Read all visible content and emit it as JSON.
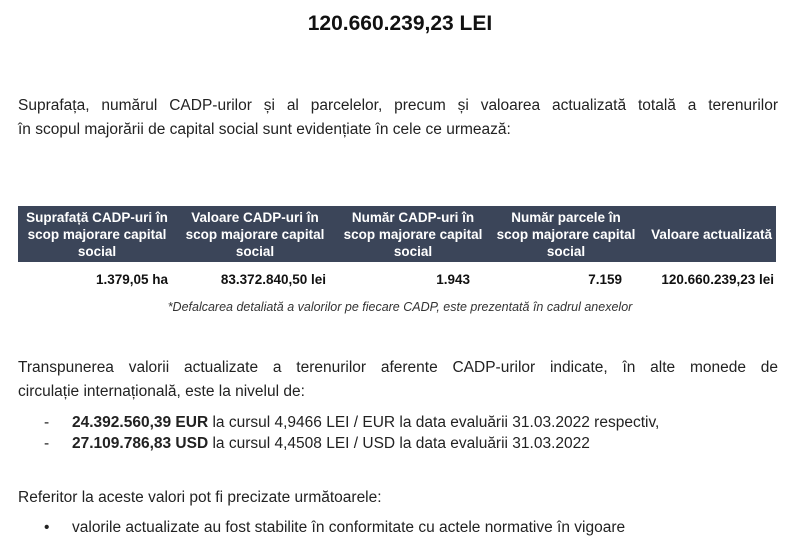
{
  "title": "120.660.239,23 LEI",
  "intro": {
    "line1": "Suprafața, numărul CADP-urilor și al parcelelor, precum și valoarea actualizată totală a terenurilor",
    "line2": "în scopul majorării de capital social sunt evidențiate în cele ce urmează:"
  },
  "table": {
    "header_color": "#3b4559",
    "headers": [
      "Suprafață CADP-uri în scop majorare capital social",
      "Valoare CADP-uri în scop majorare capital social",
      "Număr CADP-uri în scop majorare capital social",
      "Număr parcele în scop majorare capital social",
      "Valoare actualizată"
    ],
    "row": [
      "1.379,05 ha",
      "83.372.840,50 lei",
      "1.943",
      "7.159",
      "120.660.239,23 lei"
    ],
    "footnote": "*Defalcarea detaliată a valorilor pe fiecare CADP, este prezentată în cadrul anexelor"
  },
  "transpunere": {
    "line1": "Transpunerea valorii actualizate a terenurilor aferente CADP-urilor indicate, în alte monede de",
    "line2": "circulație internațională, este la nivelul de:",
    "items": [
      {
        "bullet": "-",
        "amount": "24.392.560,39 EUR",
        "text": " la cursul 4,9466 LEI / EUR la data evaluării 31.03.2022 respectiv,"
      },
      {
        "bullet": "-",
        "amount": "27.109.786,83 USD",
        "text": " la cursul 4,4508 LEI / USD la data evaluării 31.03.2022"
      }
    ]
  },
  "referitor": {
    "text": "Referitor la aceste valori pot fi precizate următoarele:",
    "items": [
      {
        "bullet": "•",
        "text": "valorile actualizate au fost stabilite în conformitate cu actele normative în vigoare"
      }
    ]
  }
}
